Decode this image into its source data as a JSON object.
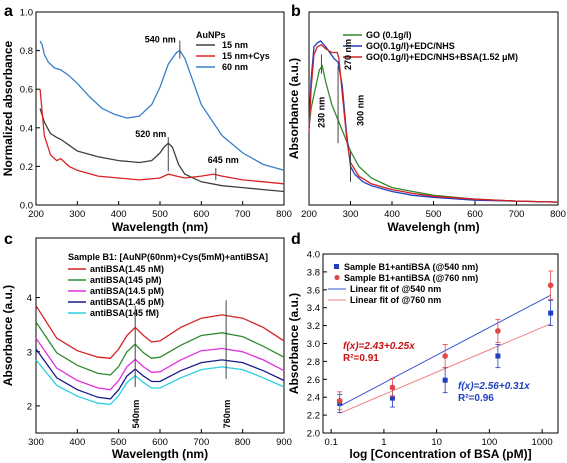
{
  "chart_data": [
    {
      "panel": "a",
      "type": "line",
      "xlabel": "Wavelength (nm)",
      "ylabel": "Normalized absorbance",
      "xlim": [
        200,
        800
      ],
      "ylim": [
        0,
        1.0
      ],
      "xticks": [
        200,
        300,
        400,
        500,
        600,
        700,
        800
      ],
      "yticks": [
        0.0,
        0.2,
        0.4,
        0.6,
        0.8,
        1.0
      ],
      "legend_title": "AuNPs",
      "legend_position": "top-right",
      "series": [
        {
          "name": "15 nm",
          "color": "#404040",
          "x": [
            210,
            220,
            235,
            250,
            260,
            280,
            300,
            350,
            400,
            450,
            480,
            500,
            510,
            520,
            530,
            545,
            560,
            600,
            650,
            700,
            750,
            800
          ],
          "y": [
            0.5,
            0.43,
            0.37,
            0.35,
            0.34,
            0.31,
            0.28,
            0.25,
            0.23,
            0.22,
            0.23,
            0.27,
            0.3,
            0.32,
            0.3,
            0.21,
            0.16,
            0.12,
            0.1,
            0.09,
            0.08,
            0.07
          ]
        },
        {
          "name": "15 nm+Cys",
          "color": "#dd2222",
          "x": [
            210,
            220,
            235,
            250,
            260,
            280,
            300,
            350,
            400,
            450,
            500,
            520,
            540,
            560,
            600,
            630,
            650,
            700,
            750,
            800
          ],
          "y": [
            0.6,
            0.36,
            0.26,
            0.23,
            0.24,
            0.2,
            0.18,
            0.15,
            0.14,
            0.13,
            0.14,
            0.16,
            0.15,
            0.14,
            0.15,
            0.16,
            0.15,
            0.13,
            0.12,
            0.11
          ]
        },
        {
          "name": "60 nm",
          "color": "#3a7fc7",
          "x": [
            210,
            215,
            220,
            230,
            245,
            260,
            280,
            300,
            330,
            360,
            390,
            420,
            450,
            480,
            500,
            520,
            540,
            548,
            560,
            580,
            600,
            650,
            700,
            750,
            800
          ],
          "y": [
            0.85,
            0.83,
            0.78,
            0.74,
            0.71,
            0.7,
            0.67,
            0.63,
            0.56,
            0.5,
            0.47,
            0.45,
            0.46,
            0.52,
            0.61,
            0.73,
            0.79,
            0.8,
            0.76,
            0.64,
            0.52,
            0.36,
            0.27,
            0.21,
            0.18
          ]
        }
      ],
      "annotations": [
        {
          "text": "540 nm",
          "x": 548,
          "y": 0.8
        },
        {
          "text": "520 nm",
          "x": 520,
          "y": 0.32
        },
        {
          "text": "645 nm",
          "x": 635,
          "y": 0.16
        }
      ]
    },
    {
      "panel": "b",
      "type": "line",
      "xlabel": "Wavelengh (nm)",
      "ylabel": "Absorbance (a.u.)",
      "xlim": [
        200,
        800
      ],
      "xticks": [
        200,
        300,
        400,
        500,
        600,
        700,
        800
      ],
      "legend_position": "top-right",
      "series": [
        {
          "name": "GO (0.1g/l)",
          "color": "#2e8b2e",
          "x": [
            200,
            205,
            215,
            225,
            232,
            240,
            255,
            270,
            285,
            300,
            320,
            350,
            400,
            450,
            500,
            600,
            700,
            800
          ],
          "y": [
            0.4,
            0.5,
            0.6,
            0.7,
            0.72,
            0.64,
            0.52,
            0.44,
            0.36,
            0.28,
            0.2,
            0.14,
            0.09,
            0.07,
            0.05,
            0.03,
            0.02,
            0.015
          ]
        },
        {
          "name": "GO(0.1g/l)+EDC/NHS",
          "color": "#1f3fbf",
          "x": [
            200,
            205,
            212,
            220,
            228,
            240,
            260,
            270,
            280,
            290,
            300,
            310,
            330,
            350,
            400,
            450,
            500,
            600,
            700,
            800
          ],
          "y": [
            0.4,
            0.65,
            0.82,
            0.84,
            0.85,
            0.82,
            0.76,
            0.74,
            0.62,
            0.38,
            0.2,
            0.16,
            0.12,
            0.1,
            0.07,
            0.05,
            0.04,
            0.025,
            0.02,
            0.015
          ]
        },
        {
          "name": "GO(0.1g/l)+EDC/NHS+BSA(1.52 μM)",
          "color": "#d62020",
          "x": [
            200,
            205,
            212,
            220,
            230,
            240,
            255,
            268,
            272,
            280,
            292,
            300,
            320,
            350,
            400,
            450,
            500,
            600,
            700,
            800
          ],
          "y": [
            0.38,
            0.6,
            0.78,
            0.82,
            0.83,
            0.81,
            0.79,
            0.79,
            0.76,
            0.58,
            0.32,
            0.22,
            0.15,
            0.11,
            0.08,
            0.06,
            0.045,
            0.03,
            0.02,
            0.015
          ]
        }
      ],
      "annotations": [
        {
          "text": "230 nm",
          "x": 230
        },
        {
          "text": "270 nm",
          "x": 270
        },
        {
          "text": "300 nm",
          "x": 300
        }
      ]
    },
    {
      "panel": "c",
      "type": "line",
      "xlabel": "Wavelength (nm)",
      "ylabel": "Absorbance (a.u.)",
      "xlim": [
        300,
        900
      ],
      "xticks": [
        300,
        400,
        500,
        600,
        700,
        800,
        900
      ],
      "yticks": [
        2,
        3,
        4
      ],
      "legend_title": "Sample B1: [AuNP(60nm)+Cys(5mM)+antiBSA]",
      "legend_position": "top-left",
      "x": [
        300,
        350,
        400,
        450,
        480,
        500,
        520,
        540,
        560,
        580,
        600,
        650,
        700,
        750,
        800,
        850,
        900
      ],
      "series": [
        {
          "name": "antiBSA(1.45 nM)",
          "color": "#d62020",
          "values": [
            3.85,
            3.25,
            3.02,
            2.9,
            2.88,
            3.05,
            3.3,
            3.45,
            3.3,
            3.18,
            3.2,
            3.45,
            3.62,
            3.68,
            3.62,
            3.45,
            3.2
          ]
        },
        {
          "name": "antiBSA(145 pM)",
          "color": "#2e8b2e",
          "values": [
            3.55,
            2.98,
            2.75,
            2.6,
            2.57,
            2.73,
            3.0,
            3.14,
            2.98,
            2.88,
            2.9,
            3.12,
            3.3,
            3.35,
            3.28,
            3.1,
            2.9
          ]
        },
        {
          "name": "antiBSA(14.5 pM)",
          "color": "#e030e0",
          "values": [
            3.25,
            2.7,
            2.47,
            2.33,
            2.3,
            2.47,
            2.72,
            2.86,
            2.72,
            2.62,
            2.63,
            2.85,
            3.02,
            3.06,
            3.0,
            2.85,
            2.65
          ]
        },
        {
          "name": "antiBSA(1.45 pM)",
          "color": "#1a1a8c",
          "values": [
            3.05,
            2.52,
            2.3,
            2.16,
            2.13,
            2.3,
            2.55,
            2.68,
            2.55,
            2.45,
            2.45,
            2.65,
            2.8,
            2.85,
            2.8,
            2.65,
            2.47
          ]
        },
        {
          "name": "antiBSA(145 fM)",
          "color": "#2ad0e0",
          "values": [
            2.85,
            2.38,
            2.18,
            2.05,
            2.03,
            2.19,
            2.43,
            2.56,
            2.43,
            2.33,
            2.33,
            2.52,
            2.67,
            2.72,
            2.67,
            2.52,
            2.35
          ]
        }
      ],
      "annotations": [
        {
          "text": "540nm",
          "x": 540
        },
        {
          "text": "760nm",
          "x": 760
        }
      ]
    },
    {
      "panel": "d",
      "type": "scatter",
      "xlabel": "log [Concentration of BSA (pM)]",
      "ylabel": "Absorbance (a.u.)",
      "xscale": "log",
      "xlim": [
        0.07,
        2000
      ],
      "ylim": [
        2.0,
        4.0
      ],
      "xticks": [
        0.1,
        1,
        10,
        100,
        1000
      ],
      "yticks": [
        2.0,
        2.2,
        2.4,
        2.6,
        2.8,
        3.0,
        3.2,
        3.4,
        3.6,
        3.8,
        4.0
      ],
      "legend_position": "top-left",
      "series": [
        {
          "name": "Sample B1+antiBSA (@540 nm)",
          "color": "#1f3fbf",
          "marker": "square",
          "x": [
            0.145,
            1.45,
            14.5,
            145,
            1450
          ],
          "y": [
            2.33,
            2.39,
            2.59,
            2.86,
            3.34
          ],
          "err": [
            0.1,
            0.1,
            0.14,
            0.13,
            0.14
          ]
        },
        {
          "name": "Sample B1+antiBSA (@760 nm)",
          "color": "#e04848",
          "marker": "circle",
          "x": [
            0.145,
            1.45,
            14.5,
            145,
            1450
          ],
          "y": [
            2.36,
            2.51,
            2.86,
            3.14,
            3.65
          ],
          "err": [
            0.1,
            0.1,
            0.13,
            0.13,
            0.16
          ]
        }
      ],
      "fits": [
        {
          "name": "Linear fit of @540 nm",
          "color": "#3b55d0",
          "intercept": 2.56,
          "slope": 0.31,
          "equation": "f(x)=2.56+0.31x",
          "r2": "R²=0.96"
        },
        {
          "name": "Linear fit of @760 nm",
          "color": "#f08080",
          "intercept": 2.43,
          "slope": 0.25,
          "equation": "f(x)=2.43+0.25x",
          "r2": "R²=0.91"
        }
      ]
    }
  ]
}
